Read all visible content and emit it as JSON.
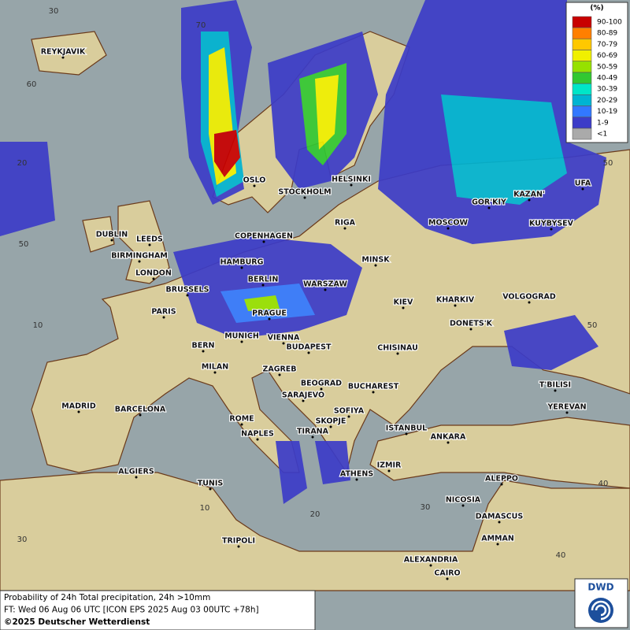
{
  "map": {
    "labels": [
      "REYKJAVIK",
      "OSLO",
      "STOCKHOLM",
      "HELSINKI",
      "RIGA",
      "DUBLIN",
      "LEEDS",
      "BIRMINGHAM",
      "LONDON",
      "COPENHAGEN",
      "HAMBURG",
      "BERLIN",
      "MINSK",
      "WARSZAW",
      "MOSCOW",
      "GOR'KIY",
      "KAZAN'",
      "UFA",
      "KUYBYSEV",
      "BRUSSELS",
      "PARIS",
      "PRAGUE",
      "KIEV",
      "KHARKIV",
      "VOLGOGRAD",
      "DONETS'K",
      "MUNICH",
      "VIENNA",
      "BERN",
      "BUDAPEST",
      "CHISINAU",
      "MILAN",
      "ZAGREB",
      "BEOGRAD",
      "BUCHAREST",
      "T'BILISI",
      "MADRID",
      "BARCELONA",
      "SARAJEVO",
      "SOFIYA",
      "YEREVAN",
      "ROME",
      "SKOPJE",
      "ISTANBUL",
      "TIRANA",
      "NAPLES",
      "ANKARA",
      "IZMIR",
      "ALGIERS",
      "ATHENS",
      "ALEPPO",
      "TUNIS",
      "NICOSIA",
      "DAMASCUS",
      "AMMAN",
      "TRIPOLI",
      "ALEXANDRIA",
      "CAIRO"
    ],
    "graticule": [
      "30",
      "70",
      "60",
      "50",
      "20",
      "50",
      "10",
      "50",
      "40",
      "10",
      "20",
      "30",
      "30",
      "40"
    ]
  },
  "legend": {
    "unit": "(%)",
    "items": [
      {
        "label": "90-100",
        "color": "#c80000"
      },
      {
        "label": "80-89",
        "color": "#ff7f00"
      },
      {
        "label": "70-79",
        "color": "#ffc800"
      },
      {
        "label": "60-69",
        "color": "#f0f000"
      },
      {
        "label": "50-59",
        "color": "#96e100"
      },
      {
        "label": "40-49",
        "color": "#32c832"
      },
      {
        "label": "30-39",
        "color": "#00e6c8"
      },
      {
        "label": "20-29",
        "color": "#00b4d2"
      },
      {
        "label": "10-19",
        "color": "#3278ff"
      },
      {
        "label": "1-9",
        "color": "#3c3cc8"
      },
      {
        "label": "<1",
        "color": "#aaaaaa"
      }
    ]
  },
  "footer": {
    "lines": [
      "Probability of 24h Total precipitation, 24h >10mm",
      "FT: Wed 06 Aug 06 UTC [ICON EPS 2025 Aug 03 00UTC +78h]",
      "©2025 Deutscher Wetterdienst"
    ]
  },
  "logo": "DWD"
}
